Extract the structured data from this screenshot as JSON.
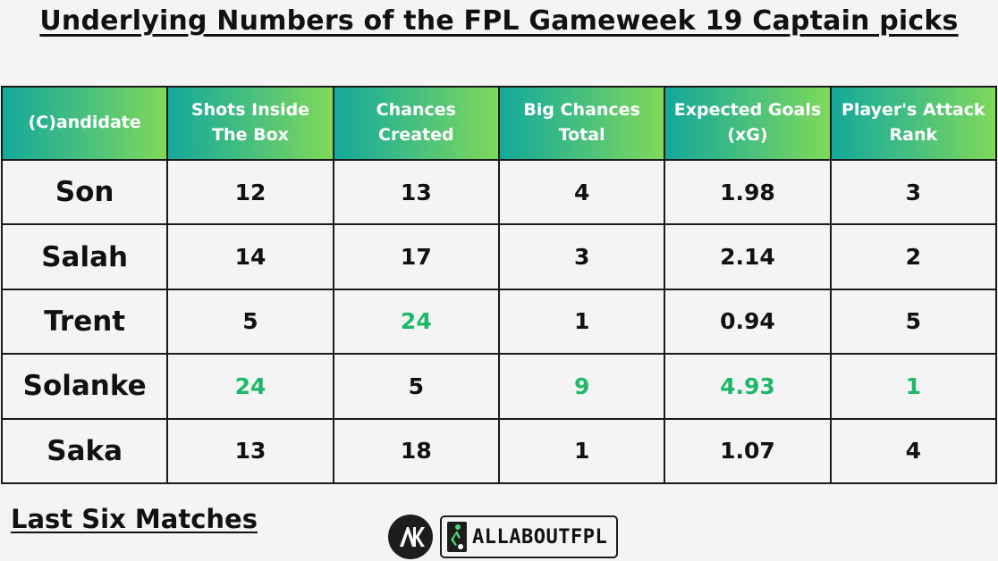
{
  "title": "Underlying Numbers of the FPL Gameweek 19 Captain picks",
  "headers": [
    "(C)andidate",
    "Shots Inside\nThe Box",
    "Chances\nCreated",
    "Big Chances\nTotal",
    "Expected Goals\n(xG)",
    "Player's Attack\nRank"
  ],
  "rows": [
    {
      "name": "Son",
      "shots_inside_box": "12",
      "chances_created": "13",
      "big_chances": "4",
      "xg": "1.98",
      "attack_rank": "3"
    },
    {
      "name": "Salah",
      "shots_inside_box": "14",
      "chances_created": "17",
      "big_chances": "3",
      "xg": "2.14",
      "attack_rank": "2"
    },
    {
      "name": "Trent",
      "shots_inside_box": "5",
      "chances_created": "24",
      "big_chances": "1",
      "xg": "0.94",
      "attack_rank": "5"
    },
    {
      "name": "Solanke",
      "shots_inside_box": "24",
      "chances_created": "5",
      "big_chances": "9",
      "xg": "4.93",
      "attack_rank": "1"
    },
    {
      "name": "Saka",
      "shots_inside_box": "13",
      "chances_created": "18",
      "big_chances": "1",
      "xg": "1.07",
      "attack_rank": "4"
    }
  ],
  "footer": "Last Six Matches",
  "logo": {
    "text": "ALLABOUTFPL",
    "icon": "ak-circle-logo"
  },
  "colors": {
    "header_gradient_start": "#14a99a",
    "header_gradient_end": "#7fd95a",
    "highlight": "#1fb86a",
    "name_red": "#dc1f48",
    "name_saka": "#ef3b3b"
  }
}
